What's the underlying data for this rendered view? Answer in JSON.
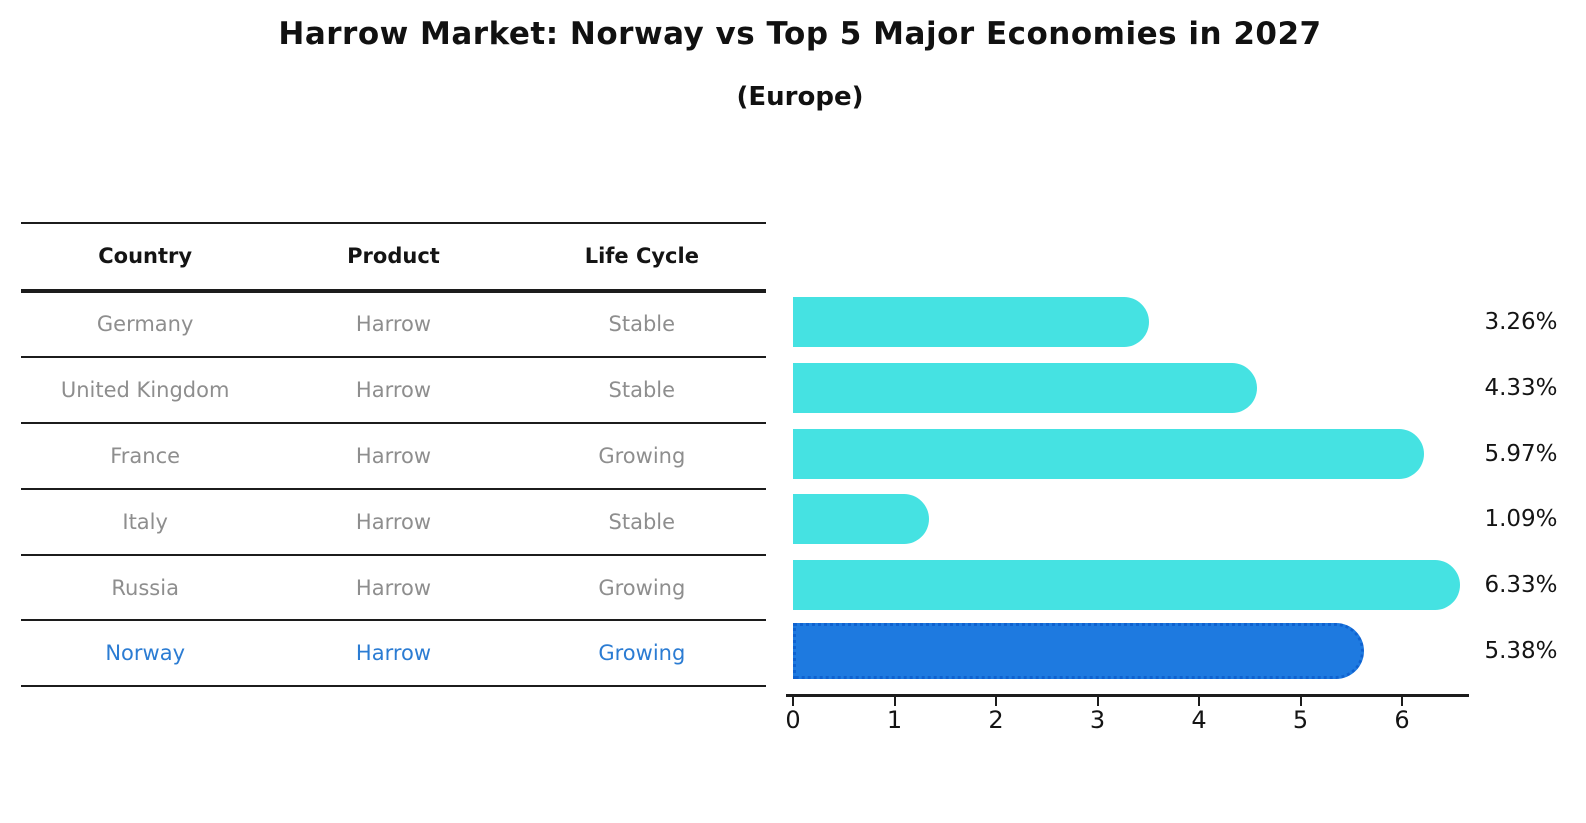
{
  "header": {
    "title": "Harrow Market: Norway vs Top 5 Major Economies in 2027",
    "subtitle": "(Europe)"
  },
  "table": {
    "columns": [
      "Country",
      "Product",
      "Life Cycle"
    ],
    "rows": [
      {
        "country": "Germany",
        "product": "Harrow",
        "life_cycle": "Stable",
        "value": 3.26,
        "value_label": "3.26%",
        "highlight": false
      },
      {
        "country": "United Kingdom",
        "product": "Harrow",
        "life_cycle": "Stable",
        "value": 4.33,
        "value_label": "4.33%",
        "highlight": false
      },
      {
        "country": "France",
        "product": "Harrow",
        "life_cycle": "Growing",
        "value": 5.97,
        "value_label": "5.97%",
        "highlight": false
      },
      {
        "country": "Italy",
        "product": "Harrow",
        "life_cycle": "Stable",
        "value": 1.09,
        "value_label": "1.09%",
        "highlight": false
      },
      {
        "country": "Russia",
        "product": "Harrow",
        "life_cycle": "Growing",
        "value": 6.33,
        "value_label": "6.33%",
        "highlight": false
      },
      {
        "country": "Norway",
        "product": "Harrow",
        "life_cycle": "Growing",
        "value": 5.38,
        "value_label": "5.38%",
        "highlight": true
      }
    ]
  },
  "chart_data": {
    "type": "bar",
    "orientation": "horizontal",
    "title": "Harrow Market: Norway vs Top 5 Major Economies in 2027",
    "subtitle": "(Europe)",
    "categories": [
      "Germany",
      "United Kingdom",
      "France",
      "Italy",
      "Russia",
      "Norway"
    ],
    "values": [
      3.26,
      4.33,
      5.97,
      1.09,
      6.33,
      5.38
    ],
    "value_labels": [
      "3.26%",
      "4.33%",
      "5.97%",
      "1.09%",
      "6.33%",
      "5.38%"
    ],
    "x_ticks": [
      0,
      1,
      2,
      3,
      4,
      5,
      6
    ],
    "xlim": [
      0,
      6.65
    ],
    "grid": false,
    "legend": false,
    "bar_color": "#45e2e2",
    "highlight_color": "#1e7ae0",
    "highlight_category": "Norway",
    "highlight_text_color": "#2b7cd3",
    "row_text_color": "#8e8e8e"
  }
}
